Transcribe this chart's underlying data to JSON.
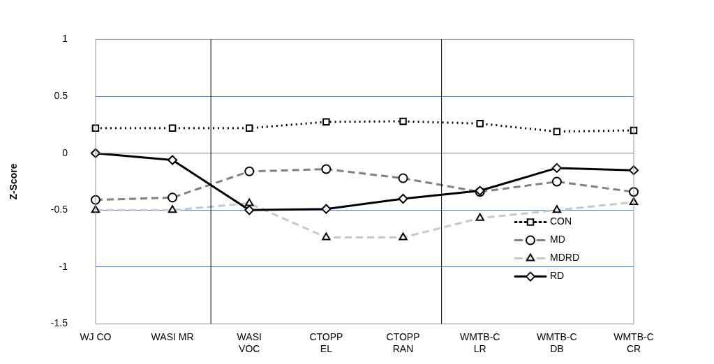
{
  "chart_data": {
    "type": "line",
    "ylabel": "Z-Score",
    "categories": [
      "WJ CO",
      "WASI MR",
      "WASI\nVOC",
      "CTOPP\nEL",
      "CTOPP\nRAN",
      "WMTB-C\nLR",
      "WMTB-C\nDB",
      "WMTB-C\nCR"
    ],
    "series": [
      {
        "name": "CON",
        "color": "#000000",
        "marker": "square",
        "line_style": "dotted",
        "values": [
          0.22,
          0.22,
          0.22,
          0.275,
          0.28,
          0.26,
          0.19,
          0.2
        ]
      },
      {
        "name": "MD",
        "color": "#808080",
        "marker": "circle",
        "line_style": "dashed",
        "values": [
          -0.41,
          -0.39,
          -0.16,
          -0.14,
          -0.22,
          -0.34,
          -0.25,
          -0.34
        ]
      },
      {
        "name": "MDRD",
        "color": "#c8c8c8",
        "marker": "triangle",
        "line_style": "dashed",
        "values": [
          -0.5,
          -0.5,
          -0.44,
          -0.74,
          -0.74,
          -0.57,
          -0.5,
          -0.43
        ]
      },
      {
        "name": "RD",
        "color": "#000000",
        "marker": "diamond",
        "line_style": "solid",
        "values": [
          0,
          -0.06,
          -0.5,
          -0.49,
          -0.4,
          -0.33,
          -0.13,
          -0.15
        ]
      }
    ],
    "ylim": [
      -1.5,
      1
    ],
    "yticks": [
      -1.5,
      -1,
      -0.5,
      0,
      0.5,
      1
    ],
    "grid": "y",
    "legend": "bottom right"
  }
}
